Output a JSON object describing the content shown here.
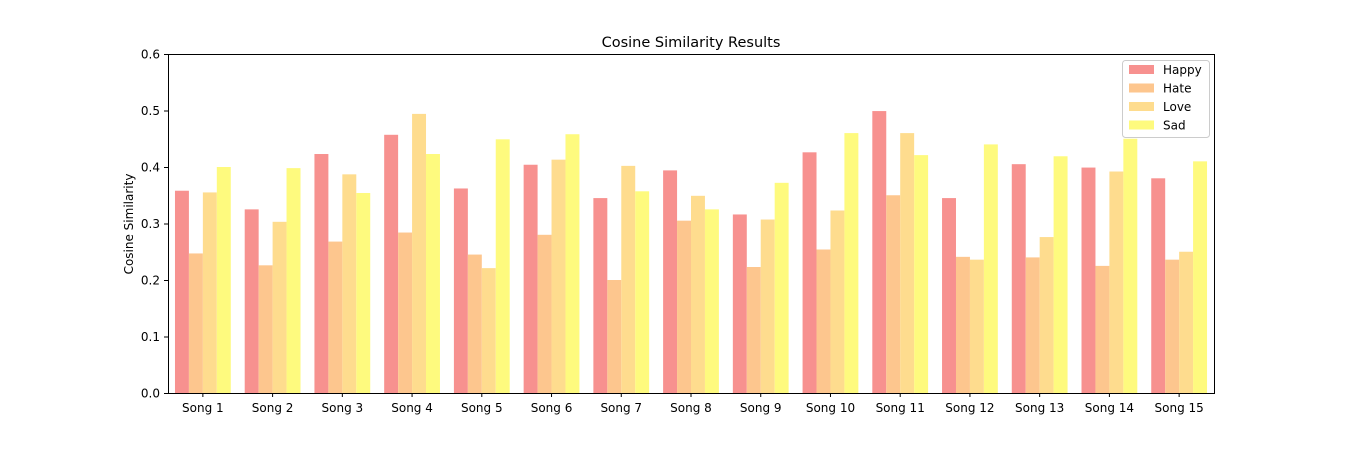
{
  "chart_data": {
    "type": "bar",
    "title": "Cosine Similarity Results",
    "xlabel": "",
    "ylabel": "Cosine Similarity",
    "ylim": [
      0,
      0.6
    ],
    "yticks": [
      "0.0",
      "0.1",
      "0.2",
      "0.3",
      "0.4",
      "0.5",
      "0.6"
    ],
    "grid": false,
    "legend_position": "top-right",
    "categories": [
      "Song 1",
      "Song 2",
      "Song 3",
      "Song 4",
      "Song 5",
      "Song 6",
      "Song 7",
      "Song 8",
      "Song 9",
      "Song 10",
      "Song 11",
      "Song 12",
      "Song 13",
      "Song 14",
      "Song 15"
    ],
    "series": [
      {
        "name": "Happy",
        "color": "#f7918f",
        "values": [
          0.358,
          0.325,
          0.423,
          0.457,
          0.362,
          0.404,
          0.345,
          0.394,
          0.316,
          0.426,
          0.499,
          0.345,
          0.405,
          0.399,
          0.38
        ]
      },
      {
        "name": "Hate",
        "color": "#fdc68e",
        "values": [
          0.247,
          0.226,
          0.268,
          0.284,
          0.245,
          0.28,
          0.2,
          0.305,
          0.223,
          0.254,
          0.35,
          0.241,
          0.24,
          0.225,
          0.236
        ]
      },
      {
        "name": "Love",
        "color": "#fedc8e",
        "values": [
          0.355,
          0.303,
          0.387,
          0.494,
          0.221,
          0.413,
          0.402,
          0.349,
          0.307,
          0.323,
          0.46,
          0.236,
          0.276,
          0.392,
          0.25
        ]
      },
      {
        "name": "Sad",
        "color": "#fefa7e",
        "values": [
          0.4,
          0.398,
          0.354,
          0.423,
          0.449,
          0.458,
          0.357,
          0.325,
          0.372,
          0.46,
          0.421,
          0.44,
          0.419,
          0.45,
          0.41
        ]
      }
    ]
  }
}
